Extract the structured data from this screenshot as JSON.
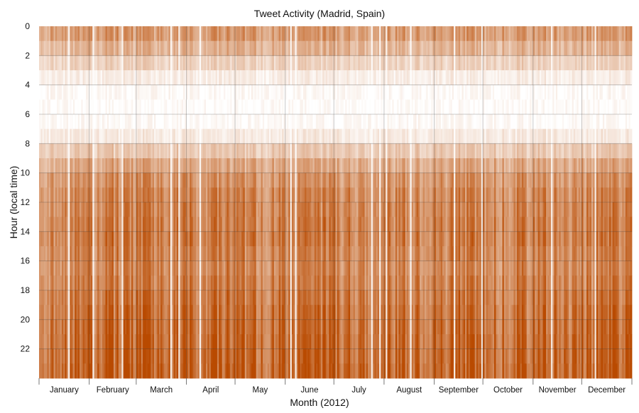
{
  "chart_data": {
    "type": "heatmap",
    "title": "Tweet Activity (Madrid, Spain)",
    "xlabel": "Month (2012)",
    "ylabel": "Hour (local time)",
    "x_categories": [
      "January",
      "February",
      "March",
      "April",
      "May",
      "June",
      "July",
      "August",
      "September",
      "October",
      "November",
      "December"
    ],
    "month_days": [
      31,
      29,
      31,
      30,
      31,
      30,
      31,
      31,
      30,
      31,
      30,
      31
    ],
    "y_ticks": [
      "0",
      "2",
      "4",
      "6",
      "8",
      "10",
      "12",
      "14",
      "16",
      "18",
      "20",
      "22"
    ],
    "ylim": [
      0,
      24
    ],
    "grid": true,
    "colormap": [
      "#ffffff",
      "#b94a00"
    ],
    "hourly_intensity": [
      0.55,
      0.42,
      0.25,
      0.1,
      0.03,
      0.02,
      0.03,
      0.12,
      0.3,
      0.48,
      0.6,
      0.66,
      0.68,
      0.7,
      0.72,
      0.68,
      0.66,
      0.7,
      0.74,
      0.78,
      0.8,
      0.82,
      0.84,
      0.86
    ]
  }
}
